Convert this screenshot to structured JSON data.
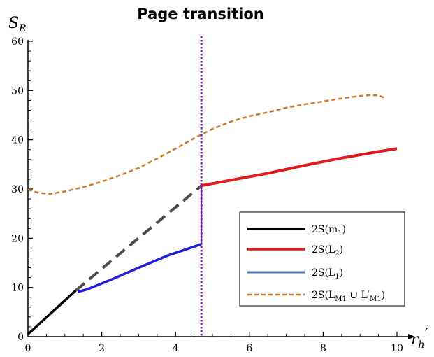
{
  "chart_data": {
    "type": "line",
    "title": "Page transition",
    "xlabel": {
      "base": "r",
      "sub": "h",
      "prime": "′"
    },
    "ylabel": {
      "base": "S",
      "sub": "R"
    },
    "xlim": [
      0,
      10
    ],
    "ylim": [
      0,
      60
    ],
    "xticks": [
      0,
      2,
      4,
      6,
      8,
      10
    ],
    "yticks": [
      0,
      10,
      20,
      30,
      40,
      50,
      60
    ],
    "grid": false,
    "legend_position": "bottom-right",
    "transition_x": 4.7,
    "series": [
      {
        "key": "m1",
        "legend": {
          "pre": "2S(m",
          "sub": "1",
          "post": ")"
        },
        "color": "#000000",
        "style": "solid",
        "points": [
          [
            0,
            0.5
          ],
          [
            1.3,
            9.4
          ]
        ]
      },
      {
        "key": "m1_dashed",
        "color": "#4d4d4d",
        "style": "dashed",
        "points": [
          [
            1.3,
            9.4
          ],
          [
            4.7,
            30.7
          ]
        ]
      },
      {
        "key": "L2",
        "legend": {
          "pre": "2S(L",
          "sub": "2",
          "post": ")"
        },
        "color": "#e31a1c",
        "style": "solid",
        "points": [
          [
            4.7,
            30.7
          ],
          [
            5.5,
            31.8
          ],
          [
            6.5,
            33.2
          ],
          [
            7.5,
            34.8
          ],
          [
            8.5,
            36.3
          ],
          [
            9.5,
            37.6
          ],
          [
            10.0,
            38.2
          ]
        ]
      },
      {
        "key": "L1",
        "legend": {
          "pre": "2S(L",
          "sub": "1",
          "post": ")"
        },
        "color": "#1f1fd6",
        "style": "solid",
        "points": [
          [
            1.35,
            9.1
          ],
          [
            1.6,
            9.6
          ],
          [
            2.2,
            11.4
          ],
          [
            3.0,
            14.0
          ],
          [
            3.8,
            16.5
          ],
          [
            4.7,
            18.8
          ]
        ]
      },
      {
        "key": "LM1",
        "legend": {
          "pre": "2S(L",
          "sub": "M1",
          "mid": " ∪ L′",
          "sub2": "M1",
          "post": ")"
        },
        "color": "#cc7a2a",
        "style": "dashed",
        "points": [
          [
            0,
            29.9
          ],
          [
            0.3,
            29.2
          ],
          [
            0.6,
            29.0
          ],
          [
            1.0,
            29.5
          ],
          [
            1.5,
            30.4
          ],
          [
            2.0,
            31.5
          ],
          [
            2.5,
            32.8
          ],
          [
            3.0,
            34.3
          ],
          [
            3.5,
            36.2
          ],
          [
            4.0,
            38.2
          ],
          [
            4.5,
            40.3
          ],
          [
            5.0,
            42.2
          ],
          [
            5.5,
            43.7
          ],
          [
            6.0,
            44.8
          ],
          [
            6.5,
            45.6
          ],
          [
            7.0,
            46.5
          ],
          [
            7.5,
            47.2
          ],
          [
            8.0,
            47.8
          ],
          [
            8.5,
            48.4
          ],
          [
            9.0,
            48.9
          ],
          [
            9.3,
            49.1
          ],
          [
            9.5,
            49.0
          ],
          [
            9.7,
            48.4
          ]
        ]
      }
    ]
  }
}
